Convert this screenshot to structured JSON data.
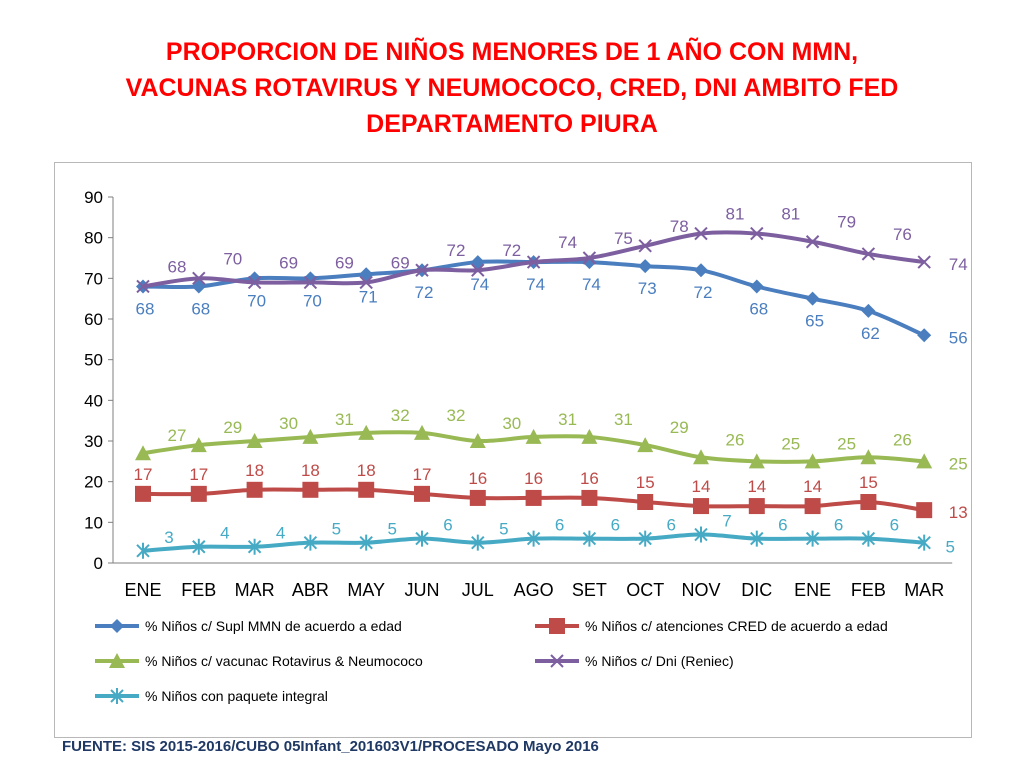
{
  "title": {
    "line1": "PROPORCION DE NIÑOS MENORES DE 1 AÑO CON MMN,",
    "line2": "VACUNAS ROTAVIRUS Y NEUMOCOCO, CRED, DNI AMBITO FED",
    "line3": "DEPARTAMENTO PIURA"
  },
  "source": "FUENTE: SIS 2015-2016/CUBO 05Infant_201603V1/PROCESADO Mayo 2016",
  "colors": {
    "title": "#ff0000",
    "source": "#1f3864"
  },
  "chart_data": {
    "type": "line",
    "categories": [
      "ENE",
      "FEB",
      "MAR",
      "ABR",
      "MAY",
      "JUN",
      "JUL",
      "AGO",
      "SET",
      "OCT",
      "NOV",
      "DIC",
      "ENE",
      "FEB",
      "MAR"
    ],
    "ylim": [
      0,
      90
    ],
    "yticks": [
      "0",
      "10",
      "20",
      "30",
      "40",
      "50",
      "60",
      "70",
      "80",
      "90"
    ],
    "grid": false,
    "legend_position": "bottom",
    "series": [
      {
        "name": "% Niños c/ Supl MMN de acuerdo a edad",
        "color": "#4a7ebf",
        "marker": "diamond",
        "values": [
          68,
          68,
          70,
          70,
          71,
          72,
          74,
          74,
          74,
          73,
          72,
          68,
          65,
          62,
          56
        ],
        "labels": [
          "68",
          "68",
          "70",
          "70",
          "71",
          "72",
          "74",
          "74",
          "74",
          "73",
          "72",
          "68",
          "65",
          "62",
          "56"
        ]
      },
      {
        "name": "% Niños c/ atenciones CRED de acuerdo a edad",
        "color": "#be4b48",
        "marker": "square",
        "values": [
          17,
          17,
          18,
          18,
          18,
          17,
          16,
          16,
          16,
          15,
          14,
          14,
          14,
          15,
          13
        ],
        "labels": [
          "17",
          "17",
          "18",
          "18",
          "18",
          "17",
          "16",
          "16",
          "16",
          "15",
          "14",
          "14",
          "14",
          "15",
          "13"
        ]
      },
      {
        "name": "% Niños c/ vacunac Rotavirus & Neumococo",
        "color": "#98b954",
        "marker": "triangle",
        "values": [
          27,
          29,
          30,
          31,
          32,
          32,
          30,
          31,
          31,
          29,
          26,
          25,
          25,
          26,
          25
        ],
        "labels": [
          "27",
          "29",
          "30",
          "31",
          "32",
          "32",
          "30",
          "31",
          "31",
          "29",
          "26",
          "25",
          "25",
          "26",
          "25"
        ]
      },
      {
        "name": "% Niños c/ Dni (Reniec)",
        "color": "#7d5fa0",
        "marker": "x",
        "values": [
          68,
          70,
          69,
          69,
          69,
          72,
          72,
          74,
          75,
          78,
          81,
          81,
          79,
          76,
          74
        ],
        "labels": [
          "68",
          "70",
          "69",
          "69",
          "69",
          "72",
          "72",
          "74",
          "75",
          "78",
          "81",
          "81",
          "79",
          "76",
          "74"
        ]
      },
      {
        "name": "% Niños con paquete integral",
        "color": "#46aac5",
        "marker": "star",
        "values": [
          3,
          4,
          4,
          5,
          5,
          6,
          5,
          6,
          6,
          6,
          7,
          6,
          6,
          6,
          5
        ],
        "labels": [
          "3",
          "4",
          "4",
          "5",
          "5",
          "6",
          "5",
          "6",
          "6",
          "6",
          "7",
          "6",
          "6",
          "6",
          "5"
        ]
      }
    ]
  }
}
